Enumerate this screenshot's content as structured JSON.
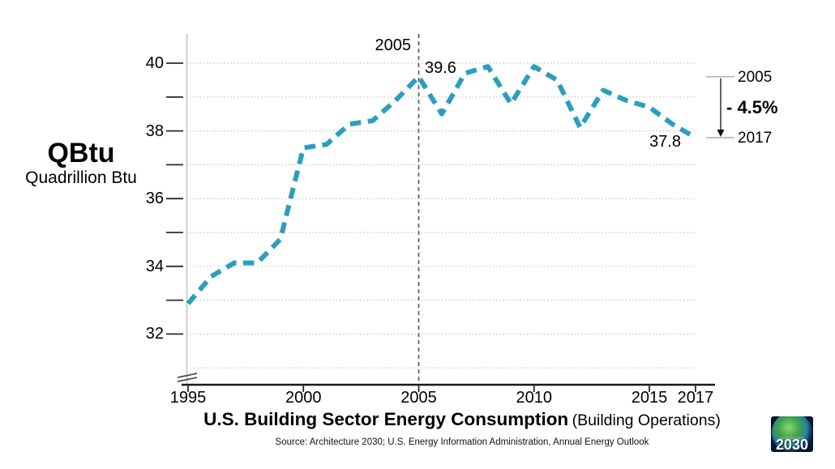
{
  "left_axis_title": {
    "main": "QBtu",
    "sub": "Quadrillion Btu"
  },
  "annotations": {
    "peak_year_label": "2005",
    "peak_value_label": "39.6",
    "end_value_label": "37.8",
    "change": {
      "from_label": "2005",
      "to_label": "2017",
      "percent_label": "- 4.5%"
    }
  },
  "title": {
    "main": "U.S. Building Sector Energy Consumption",
    "suffix": "(Building Operations)"
  },
  "source": "Source: Architecture 2030; U.S. Energy Information Administration, Annual Energy Outlook",
  "logo": {
    "org": "architecture",
    "year": "2030"
  },
  "chart_data": {
    "type": "line",
    "title": "U.S. Building Sector Energy Consumption (Building Operations)",
    "xlabel": "",
    "ylabel": "QBtu (Quadrillion Btu)",
    "x": [
      1995,
      1996,
      1997,
      1998,
      1999,
      2000,
      2001,
      2002,
      2003,
      2004,
      2005,
      2006,
      2007,
      2008,
      2009,
      2010,
      2011,
      2012,
      2013,
      2014,
      2015,
      2016,
      2017
    ],
    "values": [
      32.9,
      33.7,
      34.1,
      34.1,
      34.8,
      37.5,
      37.6,
      38.2,
      38.3,
      38.9,
      39.6,
      38.5,
      39.7,
      39.9,
      38.8,
      39.9,
      39.5,
      38.1,
      39.2,
      38.9,
      38.7,
      38.2,
      37.8
    ],
    "ylim": [
      31,
      41
    ],
    "xlim": [
      1995,
      2017
    ],
    "y_major_ticks": [
      32,
      34,
      36,
      38,
      40
    ],
    "y_minor_ticks": [
      33,
      35,
      37,
      39
    ],
    "x_tick_years": [
      1995,
      2000,
      2005,
      2010,
      2015,
      2017
    ],
    "grid": "dotted horizontal gridlines every 1 unit, y-axis has break symbol above x-axis",
    "legend": "none",
    "line_style": "dashed",
    "line_color": "#2B9EBF",
    "reference_line_x": 2005,
    "callouts": [
      {
        "year": 2005,
        "value": 39.6
      },
      {
        "year": 2017,
        "value": 37.8
      }
    ],
    "change_2005_to_2017_pct": -4.5
  }
}
